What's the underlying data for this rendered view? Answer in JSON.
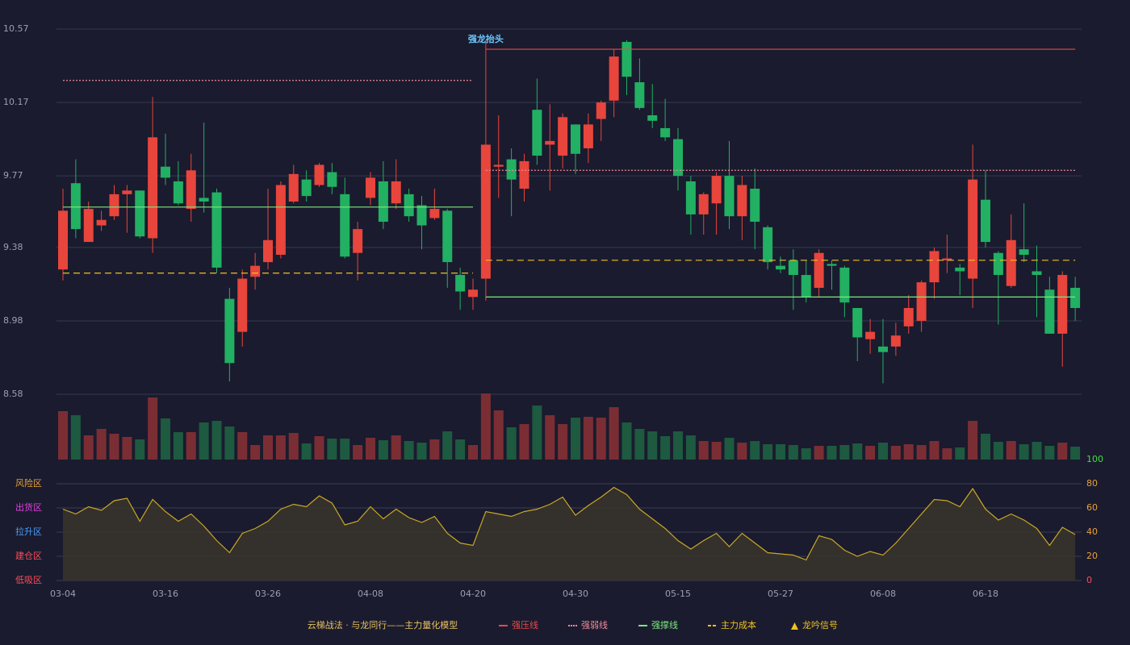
{
  "chart_data": [
    {
      "type": "candlestick",
      "categories": [
        "03-04",
        null,
        null,
        null,
        null,
        null,
        null,
        null,
        "03-16",
        null,
        null,
        null,
        null,
        null,
        null,
        null,
        "03-26",
        null,
        null,
        null,
        null,
        null,
        null,
        null,
        "04-08",
        null,
        null,
        null,
        null,
        null,
        null,
        null,
        "04-20",
        null,
        null,
        null,
        null,
        null,
        null,
        null,
        "04-30",
        null,
        null,
        null,
        null,
        null,
        null,
        null,
        "05-15",
        null,
        null,
        null,
        null,
        null,
        null,
        null,
        "05-27",
        null,
        null,
        null,
        null,
        null,
        null,
        null,
        "06-08",
        null,
        null,
        null,
        null,
        null,
        null,
        null,
        "06-18",
        null,
        null,
        null,
        null,
        null,
        null,
        null
      ],
      "open": [
        9.26,
        9.73,
        9.41,
        9.5,
        9.55,
        9.67,
        9.69,
        9.43,
        9.82,
        9.74,
        9.59,
        9.65,
        9.68,
        9.1,
        8.92,
        9.22,
        9.3,
        9.34,
        9.63,
        9.75,
        9.72,
        9.79,
        9.67,
        9.35,
        9.65,
        9.74,
        9.62,
        9.67,
        9.61,
        9.54,
        9.58,
        9.23,
        9.11,
        9.21,
        9.82,
        9.86,
        9.7,
        10.13,
        9.94,
        9.88,
        10.05,
        9.92,
        10.08,
        10.18,
        10.5,
        10.28,
        10.1,
        10.03,
        9.97,
        9.74,
        9.56,
        9.62,
        9.77,
        9.55,
        9.7,
        9.49,
        9.28,
        9.31,
        9.23,
        9.16,
        9.29,
        9.27,
        9.05,
        8.88,
        8.84,
        8.84,
        8.95,
        8.98,
        9.19,
        9.31,
        9.27,
        9.21,
        9.64,
        9.35,
        9.17,
        9.37,
        9.25,
        9.15,
        8.91,
        9.16
      ],
      "high": [
        9.7,
        9.86,
        9.63,
        9.58,
        9.72,
        9.72,
        9.69,
        10.2,
        10.0,
        9.85,
        9.89,
        10.06,
        9.7,
        9.16,
        9.26,
        9.35,
        9.7,
        9.74,
        9.83,
        9.8,
        9.84,
        9.84,
        9.76,
        9.52,
        9.79,
        9.85,
        9.86,
        9.7,
        9.66,
        9.7,
        9.59,
        9.27,
        9.21,
        10.51,
        10.1,
        9.92,
        9.89,
        10.3,
        10.16,
        10.11,
        10.05,
        10.11,
        10.18,
        10.46,
        10.51,
        10.41,
        10.27,
        10.19,
        10.03,
        9.77,
        9.68,
        9.79,
        9.96,
        9.77,
        9.81,
        9.5,
        9.33,
        9.37,
        9.31,
        9.37,
        9.31,
        9.28,
        9.05,
        8.99,
        8.99,
        8.97,
        9.12,
        9.2,
        9.38,
        9.45,
        9.29,
        9.94,
        9.8,
        9.36,
        9.56,
        9.62,
        9.39,
        9.22,
        9.25,
        9.22
      ],
      "low": [
        9.2,
        9.43,
        9.41,
        9.47,
        9.53,
        9.46,
        9.43,
        9.35,
        9.72,
        9.61,
        9.52,
        9.57,
        9.24,
        8.65,
        8.84,
        9.15,
        9.26,
        9.32,
        9.62,
        9.63,
        9.71,
        9.67,
        9.32,
        9.2,
        9.61,
        9.48,
        9.59,
        9.52,
        9.37,
        9.53,
        9.16,
        9.04,
        9.04,
        9.09,
        9.65,
        9.55,
        9.63,
        9.83,
        9.69,
        9.81,
        9.78,
        9.84,
        9.96,
        10.09,
        10.21,
        10.13,
        10.03,
        9.96,
        9.69,
        9.45,
        9.45,
        9.45,
        9.48,
        9.42,
        9.37,
        9.26,
        9.24,
        9.04,
        9.08,
        9.11,
        9.15,
        9.0,
        8.76,
        8.8,
        8.64,
        8.79,
        8.91,
        8.92,
        9.1,
        9.24,
        9.12,
        9.05,
        9.38,
        8.96,
        9.16,
        9.3,
        9.0,
        8.91,
        8.73,
        8.98
      ],
      "close": [
        9.58,
        9.48,
        9.59,
        9.53,
        9.67,
        9.69,
        9.44,
        9.98,
        9.76,
        9.62,
        9.8,
        9.63,
        9.27,
        8.75,
        9.21,
        9.28,
        9.42,
        9.72,
        9.78,
        9.66,
        9.83,
        9.71,
        9.33,
        9.48,
        9.76,
        9.52,
        9.74,
        9.55,
        9.5,
        9.59,
        9.3,
        9.14,
        9.15,
        9.94,
        9.83,
        9.75,
        9.85,
        9.88,
        9.96,
        10.09,
        9.89,
        10.05,
        10.17,
        10.42,
        10.31,
        10.14,
        10.07,
        9.98,
        9.77,
        9.56,
        9.67,
        9.77,
        9.55,
        9.72,
        9.52,
        9.3,
        9.26,
        9.23,
        9.11,
        9.35,
        9.28,
        9.08,
        8.89,
        8.92,
        8.81,
        8.9,
        9.05,
        9.19,
        9.36,
        9.32,
        9.25,
        9.75,
        9.41,
        9.23,
        9.42,
        9.34,
        9.23,
        8.91,
        9.23,
        9.05
      ],
      "up_color": "#e8453c",
      "down_color": "#22b063",
      "ylim": [
        8.58,
        10.57
      ],
      "yticks": [
        8.58,
        8.98,
        9.38,
        9.77,
        10.17,
        10.57
      ],
      "grid": true,
      "series": [
        {
          "name": "强压线",
          "color": "#e84a4a",
          "style": "solid",
          "values": [
            null,
            null,
            null,
            null,
            null,
            null,
            null,
            null,
            null,
            null,
            null,
            null,
            null,
            null,
            null,
            null,
            null,
            null,
            null,
            null,
            null,
            null,
            null,
            null,
            null,
            null,
            null,
            null,
            null,
            null,
            null,
            null,
            null,
            10.46,
            10.46,
            10.46,
            10.46,
            10.46,
            10.46,
            10.46,
            10.46,
            10.46,
            10.46,
            10.46,
            10.46,
            10.46,
            10.46,
            10.46,
            10.46,
            10.46,
            10.46,
            10.46,
            10.46,
            10.46,
            10.46,
            10.46,
            10.46,
            10.46,
            10.46,
            10.46,
            10.46,
            10.46,
            10.46,
            10.46,
            10.46,
            10.46,
            10.46,
            10.46,
            10.46,
            10.46,
            10.46,
            10.46,
            10.46,
            10.46,
            10.46,
            10.46,
            10.46,
            10.46,
            10.46,
            10.46
          ]
        },
        {
          "name": "强弱线",
          "color": "#f08a9a",
          "style": "dotted",
          "values": [
            10.29,
            10.29,
            10.29,
            10.29,
            10.29,
            10.29,
            10.29,
            10.29,
            10.29,
            10.29,
            10.29,
            10.29,
            10.29,
            10.29,
            10.29,
            10.29,
            10.29,
            10.29,
            10.29,
            10.29,
            10.29,
            10.29,
            10.29,
            10.29,
            10.29,
            10.29,
            10.29,
            10.29,
            10.29,
            10.29,
            10.29,
            10.29,
            10.29,
            9.8,
            9.8,
            9.8,
            9.8,
            9.8,
            9.8,
            9.8,
            9.8,
            9.8,
            9.8,
            9.8,
            9.8,
            9.8,
            9.8,
            9.8,
            9.8,
            9.8,
            9.8,
            9.8,
            9.8,
            9.8,
            9.8,
            9.8,
            9.8,
            9.8,
            9.8,
            9.8,
            9.8,
            9.8,
            9.8,
            9.8,
            9.8,
            9.8,
            9.8,
            9.8,
            9.8,
            9.8,
            9.8,
            9.8,
            9.8,
            9.8,
            9.8,
            9.8,
            9.8,
            9.8,
            9.8,
            9.8
          ]
        },
        {
          "name": "强撑线",
          "color": "#7de87d",
          "style": "solid",
          "values": [
            9.6,
            9.6,
            9.6,
            9.6,
            9.6,
            9.6,
            9.6,
            9.6,
            9.6,
            9.6,
            9.6,
            9.6,
            9.6,
            9.6,
            9.6,
            9.6,
            9.6,
            9.6,
            9.6,
            9.6,
            9.6,
            9.6,
            9.6,
            9.6,
            9.6,
            9.6,
            9.6,
            9.6,
            9.6,
            9.6,
            9.6,
            9.6,
            9.6,
            9.11,
            9.11,
            9.11,
            9.11,
            9.11,
            9.11,
            9.11,
            9.11,
            9.11,
            9.11,
            9.11,
            9.11,
            9.11,
            9.11,
            9.11,
            9.11,
            9.11,
            9.11,
            9.11,
            9.11,
            9.11,
            9.11,
            9.11,
            9.11,
            9.11,
            9.11,
            9.11,
            9.11,
            9.11,
            9.11,
            9.11,
            9.11,
            9.11,
            9.11,
            9.11,
            9.11,
            9.11,
            9.11,
            9.11,
            9.11,
            9.11,
            9.11,
            9.11,
            9.11,
            9.11,
            9.11,
            9.11
          ]
        },
        {
          "name": "主力成本",
          "color": "#f0c020",
          "style": "dashed",
          "values": [
            9.24,
            9.24,
            9.24,
            9.24,
            9.24,
            9.24,
            9.24,
            9.24,
            9.24,
            9.24,
            9.24,
            9.24,
            9.24,
            9.24,
            9.24,
            9.24,
            9.24,
            9.24,
            9.24,
            9.24,
            9.24,
            9.24,
            9.24,
            9.24,
            9.24,
            9.24,
            9.24,
            9.24,
            9.24,
            9.24,
            9.24,
            9.24,
            9.24,
            9.31,
            9.31,
            9.31,
            9.31,
            9.31,
            9.31,
            9.31,
            9.31,
            9.31,
            9.31,
            9.31,
            9.31,
            9.31,
            9.31,
            9.31,
            9.31,
            9.31,
            9.31,
            9.31,
            9.31,
            9.31,
            9.31,
            9.31,
            9.31,
            9.31,
            9.31,
            9.31,
            9.31,
            9.31,
            9.31,
            9.31,
            9.31,
            9.31,
            9.31,
            9.31,
            9.31,
            9.31,
            9.31,
            9.31,
            9.31,
            9.31,
            9.31,
            9.31,
            9.31,
            9.31,
            9.31,
            9.31
          ]
        }
      ],
      "annotation": {
        "text": "强龙抬头",
        "color": "#6cc8ff"
      },
      "legend_title": "云梯战法 · 与龙同行——主力量化模型",
      "markers": {
        "name": "龙吟信号",
        "color": "#f0c020"
      }
    },
    {
      "type": "bar",
      "values": [
        60,
        55,
        30,
        38,
        32,
        28,
        25,
        77,
        51,
        34,
        34,
        46,
        48,
        41,
        34,
        18,
        30,
        30,
        33,
        20,
        29,
        26,
        26,
        18,
        27,
        24,
        30,
        23,
        21,
        25,
        35,
        25,
        18,
        82,
        61,
        40,
        44,
        67,
        55,
        44,
        52,
        53,
        52,
        65,
        46,
        38,
        35,
        29,
        35,
        30,
        23,
        22,
        27,
        21,
        23,
        19,
        19,
        18,
        14,
        17,
        17,
        18,
        20,
        17,
        21,
        17,
        19,
        18,
        23,
        14,
        15,
        48,
        32,
        22,
        23,
        19,
        22,
        17,
        21,
        16
      ],
      "up_color": "#7a2e34",
      "down_color": "#1d5a40"
    },
    {
      "type": "area",
      "values": [
        59,
        55,
        61,
        58,
        66,
        68,
        49,
        67,
        57,
        49,
        55,
        45,
        33,
        23,
        39,
        43,
        49,
        59,
        63,
        61,
        70,
        64,
        46,
        49,
        61,
        51,
        59,
        52,
        48,
        53,
        39,
        31,
        29,
        57,
        55,
        53,
        57,
        59,
        63,
        69,
        54,
        62,
        69,
        77,
        71,
        59,
        51,
        43,
        33,
        26,
        33,
        39,
        28,
        39,
        31,
        23,
        22,
        21,
        17,
        37,
        34,
        25,
        20,
        24,
        21,
        31,
        43,
        55,
        67,
        66,
        61,
        76,
        59,
        50,
        55,
        50,
        43,
        29,
        44,
        38
      ],
      "color": "#c9a825",
      "fill": "#39342a",
      "ylim": [
        0,
        100
      ],
      "yticks": [
        0,
        20,
        40,
        60,
        80,
        100
      ],
      "ytick_colors": [
        "#ff4d5a",
        "#e8a23a",
        "#e8a23a",
        "#e8a23a",
        "#e8a23a",
        "#3ee03e"
      ],
      "zones": [
        {
          "label": "风险区",
          "value": 80,
          "color": "#e8a23a"
        },
        {
          "label": "出货区",
          "value": 60,
          "color": "#e040e0"
        },
        {
          "label": "拉升区",
          "value": 40,
          "color": "#4a9eff"
        },
        {
          "label": "建仓区",
          "value": 20,
          "color": "#ff4d5a"
        },
        {
          "label": "低吸区",
          "value": 0,
          "color": "#ff4d5a"
        }
      ]
    }
  ]
}
